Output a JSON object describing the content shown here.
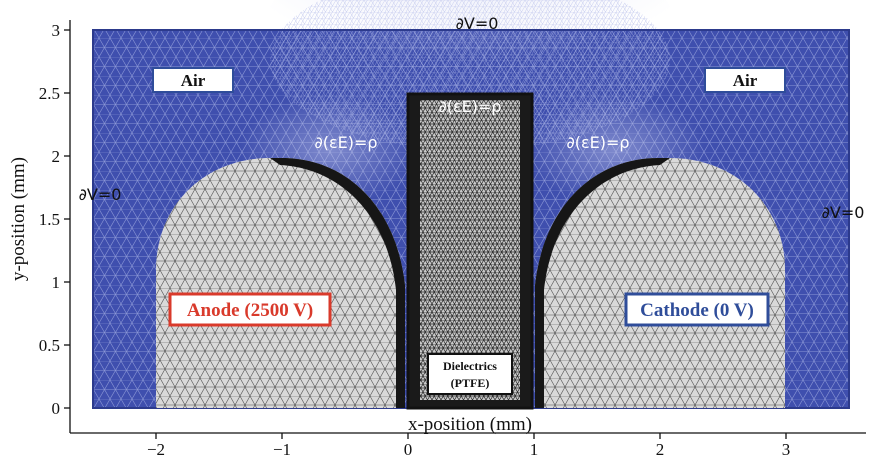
{
  "figure": {
    "x_axis": {
      "title": "x-position (mm)",
      "range": [
        -2.5,
        3.5
      ],
      "ticks": [
        -2,
        -1,
        0,
        1,
        2,
        3
      ],
      "tick_labels": [
        "−2",
        "−1",
        "0",
        "1",
        "2",
        "3"
      ]
    },
    "y_axis": {
      "title": "y-position (mm)",
      "range": [
        0,
        3
      ],
      "ticks": [
        0,
        0.5,
        1,
        1.5,
        2,
        2.5,
        3
      ],
      "tick_labels": [
        "0",
        "0.5",
        "1",
        "1.5",
        "2",
        "2.5",
        "3"
      ]
    },
    "boundary_labels": {
      "top": "∂V=0",
      "left": "∂V=0",
      "right": "∂V=0",
      "interface_left": "∂(εE)=ρ",
      "interface_right": "∂(εE)=ρ",
      "interface_top": "∂(εE)=ρ"
    },
    "regions": {
      "air_left": "Air",
      "air_right": "Air",
      "anode": "Anode (2500 V)",
      "cathode": "Cathode (0 V)",
      "dielectric_line1": "Dielectrics",
      "dielectric_line2": "(PTFE)"
    },
    "colors": {
      "air": "#3f4fae",
      "electrode": "#d9d9d9",
      "dielectric": "#1a1a1a",
      "anode_border": "#d93a2b",
      "cathode_border": "#2f4d9a",
      "air_box_border": "#2f4d9a"
    }
  }
}
